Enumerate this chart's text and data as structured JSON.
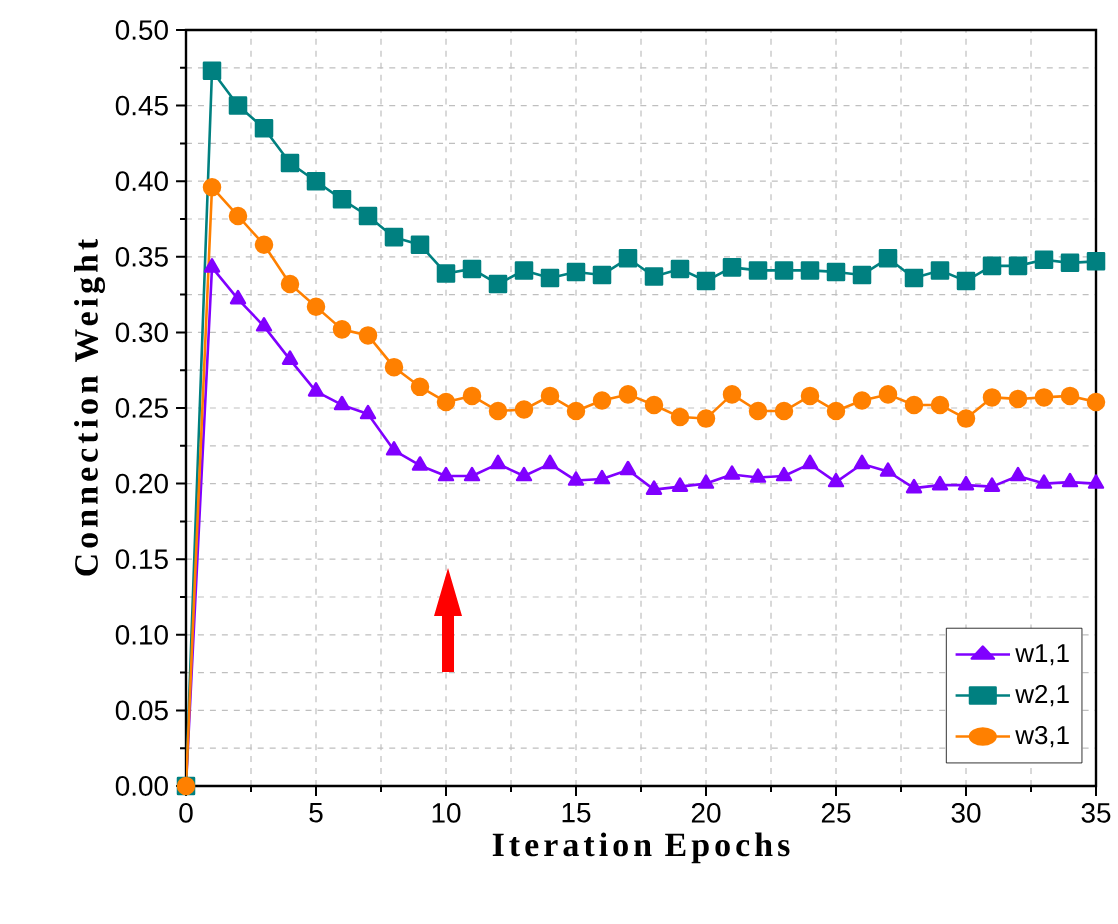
{
  "chart_data": {
    "type": "line",
    "xlabel": "Iteration Epochs",
    "ylabel": "Connection Weight",
    "x": [
      0,
      1,
      2,
      3,
      4,
      5,
      6,
      7,
      8,
      9,
      10,
      11,
      12,
      13,
      14,
      15,
      16,
      17,
      18,
      19,
      20,
      21,
      22,
      23,
      24,
      25,
      26,
      27,
      28,
      29,
      30,
      31,
      32,
      33,
      34,
      35
    ],
    "series": [
      {
        "name": "w1,1",
        "color": "#8000ff",
        "marker": "triangle",
        "values": [
          0,
          0.343,
          0.322,
          0.304,
          0.282,
          0.261,
          0.252,
          0.246,
          0.222,
          0.212,
          0.205,
          0.205,
          0.213,
          0.205,
          0.213,
          0.202,
          0.203,
          0.209,
          0.196,
          0.198,
          0.2,
          0.206,
          0.204,
          0.205,
          0.213,
          0.201,
          0.213,
          0.208,
          0.197,
          0.199,
          0.199,
          0.198,
          0.205,
          0.2,
          0.201,
          0.2
        ]
      },
      {
        "name": "w2,1",
        "color": "#008080",
        "marker": "square",
        "values": [
          0,
          0.473,
          0.45,
          0.435,
          0.412,
          0.4,
          0.388,
          0.377,
          0.363,
          0.358,
          0.339,
          0.342,
          0.332,
          0.341,
          0.336,
          0.34,
          0.338,
          0.349,
          0.337,
          0.342,
          0.334,
          0.343,
          0.341,
          0.341,
          0.341,
          0.34,
          0.338,
          0.349,
          0.336,
          0.341,
          0.334,
          0.344,
          0.344,
          0.348,
          0.346,
          0.347
        ]
      },
      {
        "name": "w3,1",
        "color": "#ff8000",
        "marker": "circle",
        "values": [
          0,
          0.396,
          0.377,
          0.358,
          0.332,
          0.317,
          0.302,
          0.298,
          0.277,
          0.264,
          0.254,
          0.258,
          0.248,
          0.249,
          0.258,
          0.248,
          0.255,
          0.259,
          0.252,
          0.244,
          0.243,
          0.259,
          0.248,
          0.248,
          0.258,
          0.248,
          0.255,
          0.259,
          0.252,
          0.252,
          0.243,
          0.257,
          0.256,
          0.257,
          0.258,
          0.254
        ]
      }
    ],
    "xlim": [
      0,
      35
    ],
    "xticks": [
      0,
      5,
      10,
      15,
      20,
      25,
      30,
      35
    ],
    "ylim": [
      0,
      0.5
    ],
    "yticks": [
      {
        "value": 0,
        "label": "0.00"
      },
      {
        "value": 0.05,
        "label": "0.05"
      },
      {
        "value": 0.1,
        "label": "0.10"
      },
      {
        "value": 0.15,
        "label": "0.15"
      },
      {
        "value": 0.2,
        "label": "0.20"
      },
      {
        "value": 0.25,
        "label": "0.25"
      },
      {
        "value": 0.3,
        "label": "0.30"
      },
      {
        "value": 0.35,
        "label": "0.35"
      },
      {
        "value": 0.4,
        "label": "0.40"
      },
      {
        "value": 0.45,
        "label": "0.45"
      },
      {
        "value": 0.5,
        "label": "0.50"
      }
    ],
    "grid": true,
    "legend": "bottom right",
    "line_style": "solid"
  }
}
